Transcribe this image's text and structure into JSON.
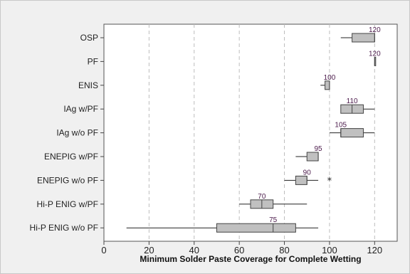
{
  "chart_data": {
    "type": "boxplot",
    "orientation": "horizontal",
    "title": "",
    "xlabel": "Minimum Solder Paste Coverage for Complete Wetting",
    "ylabel": "",
    "xlim": [
      0,
      130
    ],
    "xticks": [
      0,
      20,
      40,
      60,
      80,
      100,
      120
    ],
    "grid": {
      "x": true,
      "y": false,
      "style": "dashed"
    },
    "categories": [
      "OSP",
      "PF",
      "ENIS",
      "IAg w/PF",
      "IAg w/o PF",
      "ENEPIG w/PF",
      "ENEPIG w/o PF",
      "Hi-P ENIG w/PF",
      "Hi-P ENIG w/o PF"
    ],
    "boxes": [
      {
        "label": "OSP",
        "whisker_low": 105,
        "q1": 110,
        "median": 120,
        "q3": 120,
        "whisker_high": 120,
        "median_label": "120",
        "outliers": []
      },
      {
        "label": "PF",
        "whisker_low": 120,
        "q1": 120,
        "median": 120,
        "q3": 120,
        "whisker_high": 120,
        "median_label": "120",
        "outliers": []
      },
      {
        "label": "ENIS",
        "whisker_low": 96,
        "q1": 98,
        "median": 100,
        "q3": 100,
        "whisker_high": 100,
        "median_label": "100",
        "outliers": []
      },
      {
        "label": "IAg w/PF",
        "whisker_low": 105,
        "q1": 105,
        "median": 110,
        "q3": 115,
        "whisker_high": 120,
        "median_label": "110",
        "outliers": []
      },
      {
        "label": "IAg w/o PF",
        "whisker_low": 100,
        "q1": 105,
        "median": 105,
        "q3": 115,
        "whisker_high": 120,
        "median_label": "105",
        "outliers": []
      },
      {
        "label": "ENEPIG w/PF",
        "whisker_low": 85,
        "q1": 90,
        "median": 95,
        "q3": 95,
        "whisker_high": 95,
        "median_label": "95",
        "outliers": []
      },
      {
        "label": "ENEPIG w/o PF",
        "whisker_low": 80,
        "q1": 85,
        "median": 90,
        "q3": 90,
        "whisker_high": 95,
        "median_label": "90",
        "outliers": [
          100
        ]
      },
      {
        "label": "Hi-P ENIG w/PF",
        "whisker_low": 60,
        "q1": 65,
        "median": 70,
        "q3": 75,
        "whisker_high": 90,
        "median_label": "70",
        "outliers": []
      },
      {
        "label": "Hi-P ENIG w/o PF",
        "whisker_low": 10,
        "q1": 50,
        "median": 75,
        "q3": 85,
        "whisker_high": 95,
        "median_label": "75",
        "outliers": []
      }
    ],
    "colors": {
      "box_fill": "#c0c0c0",
      "box_stroke": "#444444",
      "whisker": "#222222",
      "grid": "#bdbdbd",
      "plot_bg": "#ffffff",
      "figure_bg": "#f0f0f0"
    }
  }
}
